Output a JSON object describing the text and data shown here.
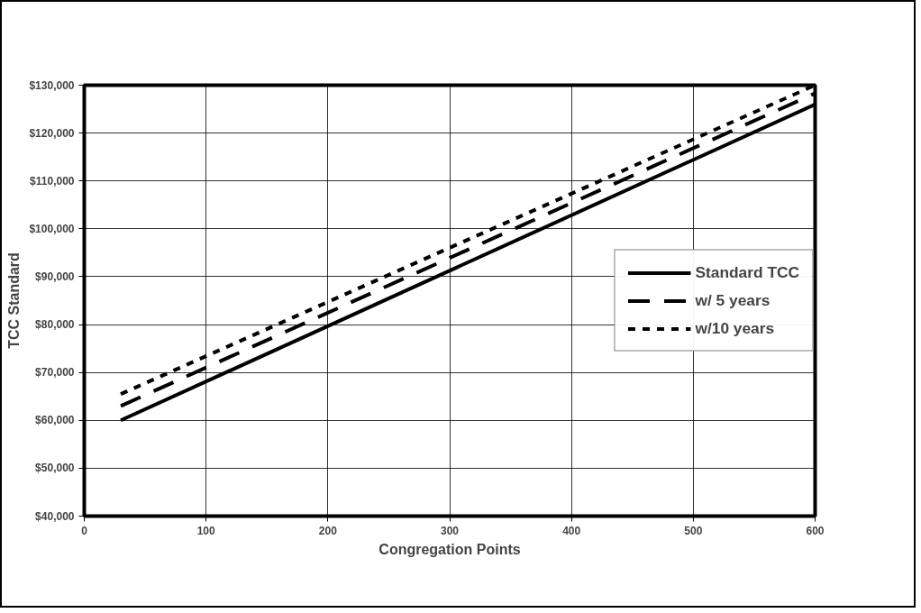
{
  "chart_data": {
    "type": "line",
    "xlabel": "Congregation Points",
    "ylabel": "TCC Standard",
    "x": [
      30,
      600
    ],
    "series": [
      {
        "name": "Standard TCC",
        "color": "#000000",
        "values": [
          60000,
          126000
        ],
        "line_style": "solid"
      },
      {
        "name": "w/ 5 years",
        "color": "#000000",
        "values": [
          63000,
          128300
        ],
        "line_style": "dashed"
      },
      {
        "name": "w/10 years",
        "color": "#000000",
        "values": [
          65500,
          130000
        ],
        "line_style": "dotted"
      }
    ],
    "xlim": [
      0,
      600
    ],
    "xticks": [
      0,
      100,
      200,
      300,
      400,
      500,
      600
    ],
    "ylim": [
      40000,
      130000
    ],
    "yticks": [
      {
        "value": 40000,
        "label": "$40,000"
      },
      {
        "value": 50000,
        "label": "$50,000"
      },
      {
        "value": 60000,
        "label": "$60,000"
      },
      {
        "value": 70000,
        "label": "$70,000"
      },
      {
        "value": 80000,
        "label": "$80,000"
      },
      {
        "value": 90000,
        "label": "$90,000"
      },
      {
        "value": 100000,
        "label": "$100,000"
      },
      {
        "value": 110000,
        "label": "$110,000"
      },
      {
        "value": 120000,
        "label": "$120,000"
      },
      {
        "value": 130000,
        "label": "$130,000"
      }
    ],
    "grid": true,
    "legend": "right",
    "marker": "none"
  }
}
